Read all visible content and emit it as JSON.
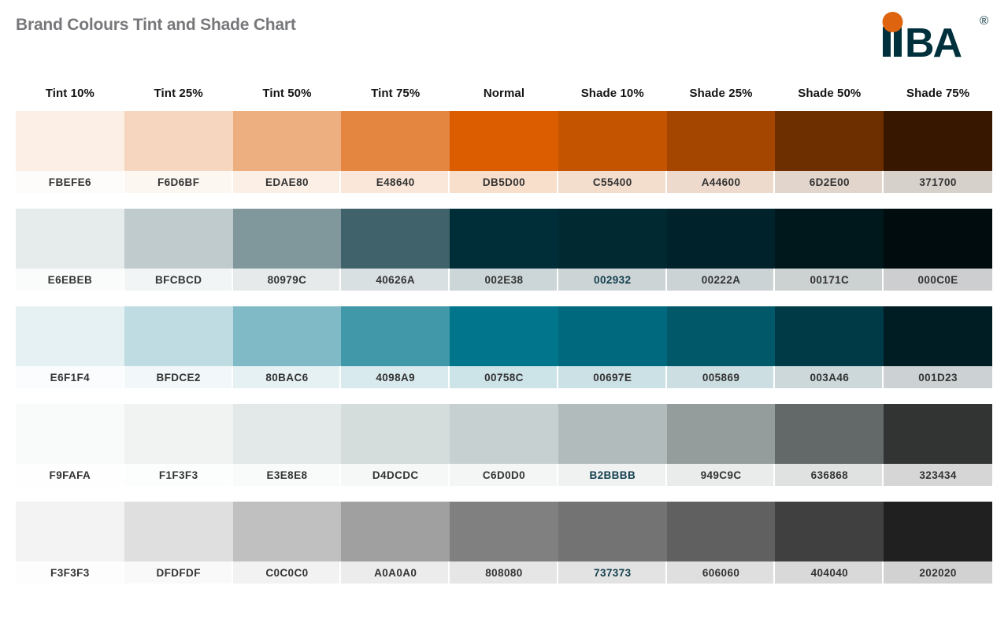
{
  "page": {
    "title": "Brand Colours Tint and Shade Chart"
  },
  "logo": {
    "name": "IIBA",
    "ba_text": "BA",
    "registered_mark": "®"
  },
  "colors": {
    "page_bg": "#FFFFFF",
    "title_text": "#77787B",
    "header_text": "#141414",
    "label_text": "#333333",
    "label_accent_text": "#123F4D",
    "separator": "#FFFFFF",
    "logo_navy": "#00303C",
    "logo_orange": "#DF6410"
  },
  "columns": [
    "Tint 10%",
    "Tint 25%",
    "Tint 50%",
    "Tint 75%",
    "Normal",
    "Shade 10%",
    "Shade 25%",
    "Shade 50%",
    "Shade 75%"
  ],
  "rows": [
    {
      "id": "orange",
      "hexes": [
        "FBEFE6",
        "F6D6BF",
        "EDAE80",
        "E48640",
        "DB5D00",
        "C55400",
        "A44600",
        "6D2E00",
        "371700"
      ],
      "accent_index": null
    },
    {
      "id": "dark-navy",
      "hexes": [
        "E6EBEB",
        "BFCBCD",
        "80979C",
        "40626A",
        "002E38",
        "002932",
        "00222A",
        "00171C",
        "000C0E"
      ],
      "accent_index": 5
    },
    {
      "id": "teal",
      "hexes": [
        "E6F1F4",
        "BFDCE2",
        "80BAC6",
        "4098A9",
        "00758C",
        "00697E",
        "005869",
        "003A46",
        "001D23"
      ],
      "accent_index": null
    },
    {
      "id": "cool-gray",
      "hexes": [
        "F9FAFA",
        "F1F3F3",
        "E3E8E8",
        "D4DCDC",
        "C6D0D0",
        "B2BBBB",
        "949C9C",
        "636868",
        "323434"
      ],
      "accent_index": 5
    },
    {
      "id": "neutral-gray",
      "hexes": [
        "F3F3F3",
        "DFDFDF",
        "C0C0C0",
        "A0A0A0",
        "808080",
        "737373",
        "606060",
        "404040",
        "202020"
      ],
      "accent_index": 5
    }
  ],
  "label_background_tint_factor": 0.2
}
